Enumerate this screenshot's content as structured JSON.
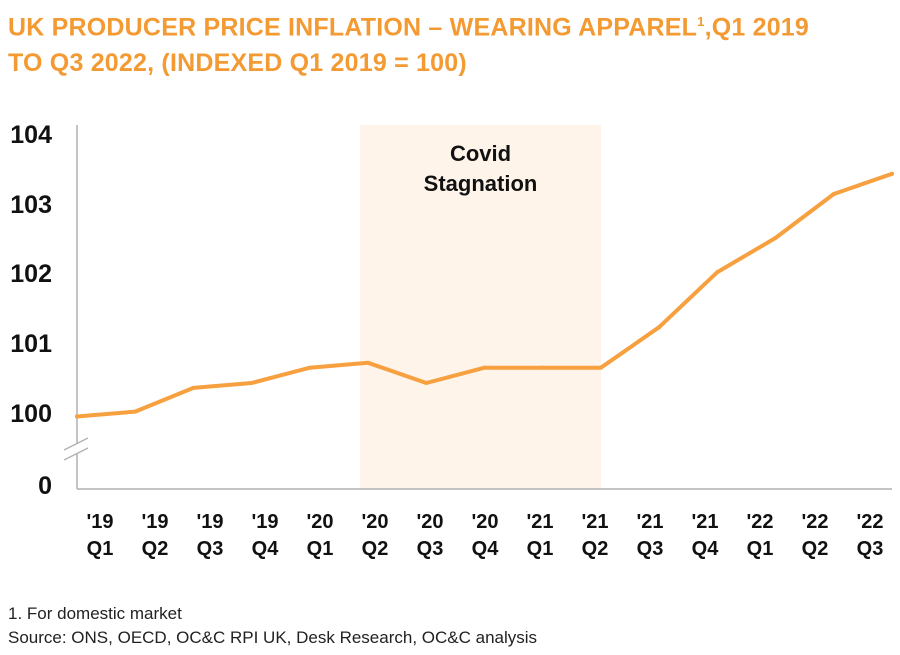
{
  "title_line1": "UK PRODUCER PRICE INFLATION – WEARING APPAREL",
  "title_sup": "1",
  "title_line1_end": ",Q1 2019",
  "title_line2": "TO Q3 2022, (INDEXED Q1 2019 = 100)",
  "footnote": "1. For domestic market",
  "source": "Source: ONS, OECD, OC&C RPI UK, Desk Research, OC&C analysis",
  "colors": {
    "line": "#F7A03F",
    "title": "#F39A33",
    "shade": "#FEF4EA",
    "axis": "#B0B0B0"
  },
  "chart_data": {
    "type": "line",
    "categories": [
      [
        "'19",
        "Q1"
      ],
      [
        "'19",
        "Q2"
      ],
      [
        "'19",
        "Q3"
      ],
      [
        "'19",
        "Q4"
      ],
      [
        "'20",
        "Q1"
      ],
      [
        "'20",
        "Q2"
      ],
      [
        "'20",
        "Q3"
      ],
      [
        "'20",
        "Q4"
      ],
      [
        "'21",
        "Q1"
      ],
      [
        "'21",
        "Q2"
      ],
      [
        "'21",
        "Q3"
      ],
      [
        "'21",
        "Q4"
      ],
      [
        "'22",
        "Q1"
      ],
      [
        "'22",
        "Q2"
      ],
      [
        "'22",
        "Q3"
      ]
    ],
    "values": [
      99.95,
      100.02,
      100.36,
      100.43,
      100.65,
      100.72,
      100.43,
      100.65,
      100.65,
      100.65,
      101.23,
      102.02,
      102.51,
      103.14,
      103.43
    ],
    "yticks": [
      "104",
      "103",
      "102",
      "101",
      "100",
      "0"
    ],
    "ylim": [
      100,
      104
    ],
    "axis_break": true,
    "annotation": {
      "text_line1": "Covid",
      "text_line2": "Stagnation",
      "from": "'20 Q2",
      "to": "'21 Q2"
    },
    "grid": false
  }
}
